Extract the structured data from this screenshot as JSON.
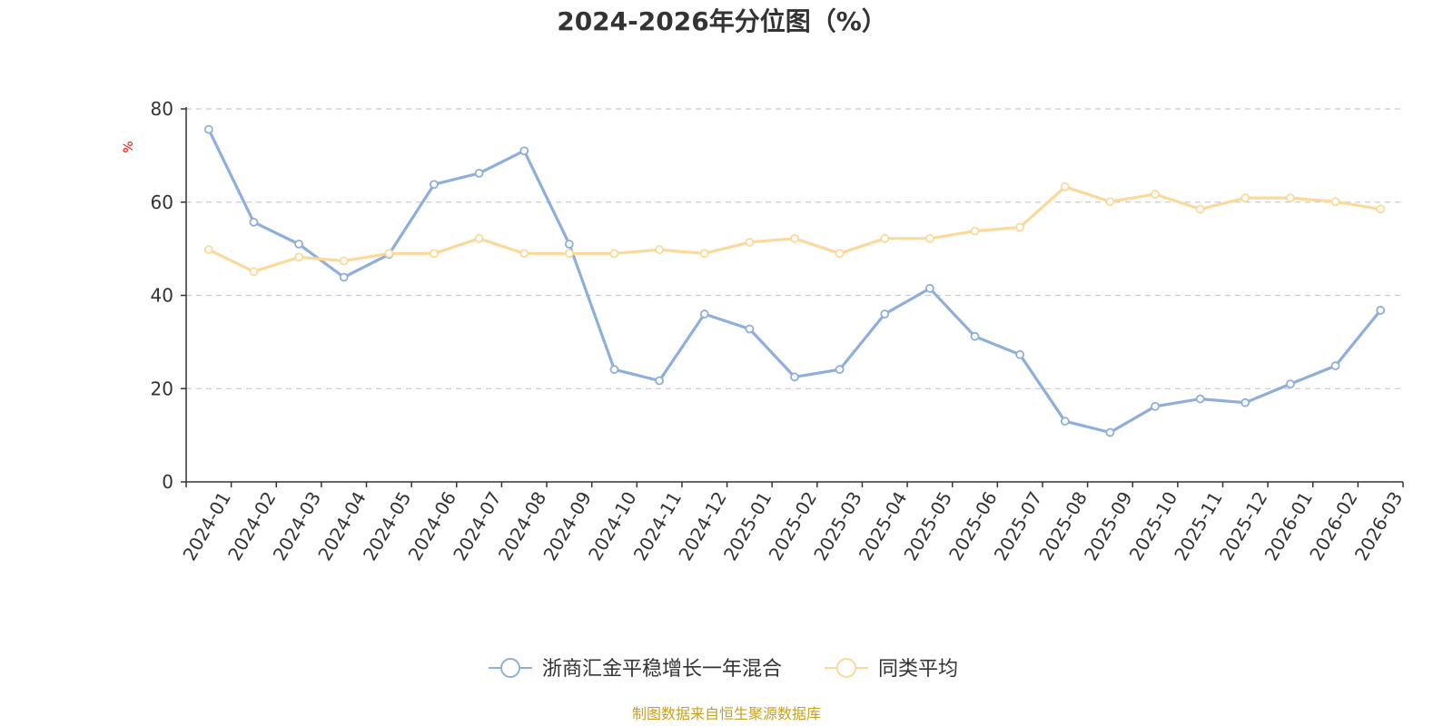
{
  "chart_data": {
    "type": "line",
    "title": "2024-2026年分位图（%）",
    "ylabel": "%",
    "xlabel": "",
    "ylim": [
      0,
      80
    ],
    "yticks": [
      0,
      20,
      40,
      60,
      80
    ],
    "grid": true,
    "legend_position": "bottom-center",
    "categories": [
      "2024-01",
      "2024-02",
      "2024-03",
      "2024-04",
      "2024-05",
      "2024-06",
      "2024-07",
      "2024-08",
      "2024-09",
      "2024-10",
      "2024-11",
      "2024-12",
      "2025-01",
      "2025-02",
      "2025-03",
      "2025-04",
      "2025-05",
      "2025-06",
      "2025-07",
      "2025-08",
      "2025-09",
      "2025-10",
      "2025-11",
      "2025-12",
      "2026-01",
      "2026-02",
      "2026-03"
    ],
    "series": [
      {
        "name": "浙商汇金平稳增长一年混合",
        "color": "#8eaedc",
        "values": [
          75.6,
          55.7,
          51.0,
          43.9,
          48.8,
          63.8,
          66.2,
          71.0,
          51.0,
          24.1,
          21.7,
          36.0,
          32.8,
          22.5,
          24.1,
          36.0,
          41.5,
          31.2,
          27.3,
          13.0,
          10.6,
          16.2,
          17.8,
          17.0,
          21.0,
          24.9,
          36.8
        ]
      },
      {
        "name": "同类平均",
        "color": "#fbd99a",
        "values": [
          49.8,
          45.1,
          48.2,
          47.4,
          49.0,
          49.0,
          52.2,
          49.0,
          49.0,
          49.0,
          49.8,
          49.0,
          51.4,
          52.2,
          49.0,
          52.2,
          52.2,
          53.8,
          54.6,
          63.3,
          60.1,
          61.7,
          58.5,
          60.9,
          60.9,
          60.1,
          58.5
        ]
      }
    ]
  },
  "source_note": "制图数据来自恒生聚源数据库",
  "source_color": "#c8a020"
}
